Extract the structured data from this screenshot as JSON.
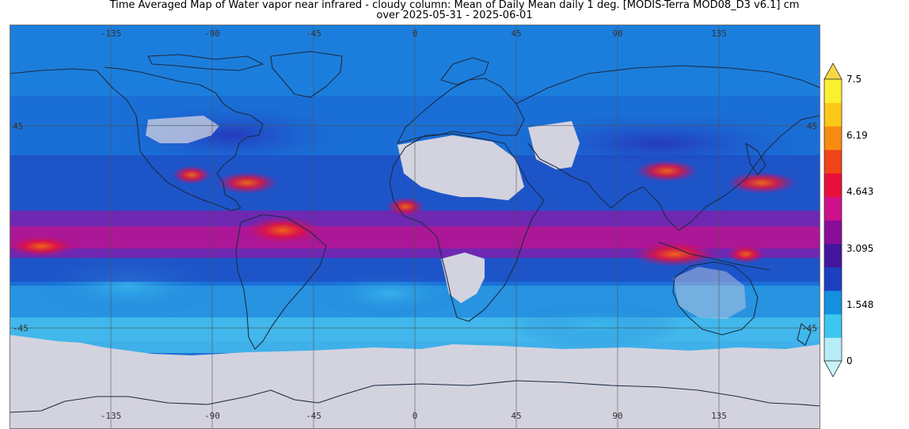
{
  "title": {
    "line1": "Time Averaged Map of Water vapor near infrared - cloudy column: Mean of Daily Mean daily 1 deg. [MODIS-Terra MOD08_D3 v6.1] cm",
    "line2": "over 2025-05-31 - 2025-06-01"
  },
  "map": {
    "projection": "equirectangular",
    "lon_ticks": [
      "-135",
      "-90",
      "-45",
      "0",
      "45",
      "90",
      "135"
    ],
    "lat_ticks": [
      "45",
      "-45"
    ],
    "colors": {
      "no_data": "#d3d3df",
      "ocean_base": "#1a78d8",
      "coast": "#1c2b44",
      "grid": "#505050"
    }
  },
  "colorbar": {
    "labels": [
      "7.5",
      "6.19",
      "4.643",
      "3.095",
      "1.548",
      "0"
    ],
    "colors": [
      "#b8ecf6",
      "#3cc8ee",
      "#1490e0",
      "#1b3fc0",
      "#43149c",
      "#8a0d9a",
      "#d0108a",
      "#e8103a",
      "#f04418",
      "#f88c10",
      "#fcc818",
      "#fcf030"
    ],
    "over_color": "#f8d840",
    "under_color": "#c8f4f8"
  }
}
